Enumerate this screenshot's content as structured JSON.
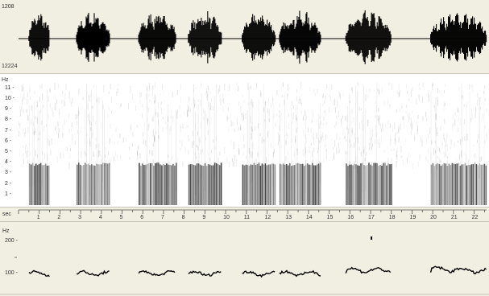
{
  "waveform": {
    "top_value": "1208",
    "bottom_value": "12224",
    "colors": {
      "wave": "#000000",
      "background": "#f1efe2"
    },
    "segments_seconds": [
      [
        0.5,
        1.5
      ],
      [
        2.8,
        4.4
      ],
      [
        5.8,
        7.6
      ],
      [
        8.2,
        9.8
      ],
      [
        10.8,
        12.4
      ],
      [
        12.6,
        14.6
      ],
      [
        15.8,
        18.0
      ],
      [
        19.9,
        22.6
      ]
    ]
  },
  "spectrogram": {
    "unit_label": "Hz",
    "tick_labels": [
      "1 -",
      "2 -",
      "3 -",
      "4 -",
      "5 -",
      "6 -",
      "7 -",
      "8 -",
      "9 -",
      "10 -",
      "11 -"
    ],
    "tick_values": [
      1,
      2,
      3,
      4,
      5,
      6,
      7,
      8,
      9,
      10,
      11
    ],
    "y_max": 11.6
  },
  "time_axis": {
    "unit_label": "sec",
    "tick_labels": [
      "1",
      "2",
      "3",
      "4",
      "5",
      "6",
      "7",
      "8",
      "9",
      "10",
      "11",
      "12",
      "13",
      "14",
      "15",
      "16",
      "17",
      "18",
      "19",
      "20",
      "21",
      "22"
    ],
    "x_max_seconds": 22.6
  },
  "pitch": {
    "unit_label": "Hz",
    "tick_labels": [
      "200 -",
      "100 -"
    ],
    "tick_values": [
      200,
      100
    ],
    "track_color": "#000000"
  }
}
